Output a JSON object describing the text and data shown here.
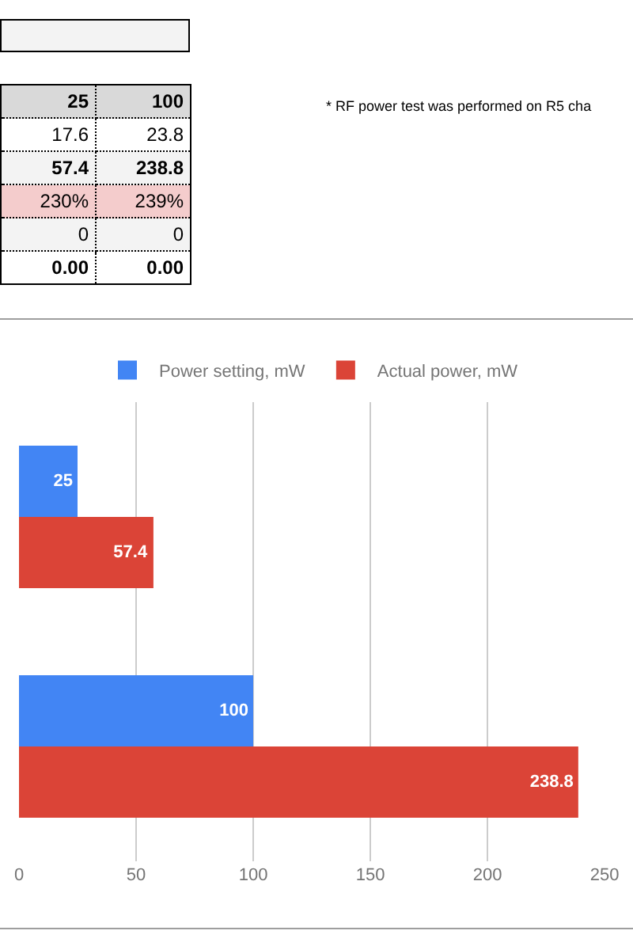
{
  "chart_data": [
    {
      "type": "other",
      "cell_labels": [
        [
          "25",
          "100"
        ],
        [
          "17.6",
          "23.8"
        ],
        [
          "57.4",
          "238.8"
        ],
        [
          "230%",
          "239%"
        ],
        [
          "0",
          "0"
        ],
        [
          "0.00",
          "0.00"
        ]
      ],
      "annotations": [
        "* RF power test was performed on R5 cha"
      ]
    },
    {
      "type": "bar",
      "orientation": "horizontal",
      "categories": [
        null,
        null
      ],
      "series": [
        {
          "name": "Power setting, mW",
          "color": "#4285f4",
          "values": [
            25,
            100
          ]
        },
        {
          "name": "Actual power, mW",
          "color": "#db4437",
          "values": [
            57.4,
            238.8
          ]
        }
      ],
      "xlim": [
        0,
        250
      ],
      "xticks": [
        0,
        50,
        100,
        150,
        200,
        250
      ],
      "grid": "x",
      "legend": "top",
      "data_labels": true,
      "tick_labels": "x"
    }
  ]
}
